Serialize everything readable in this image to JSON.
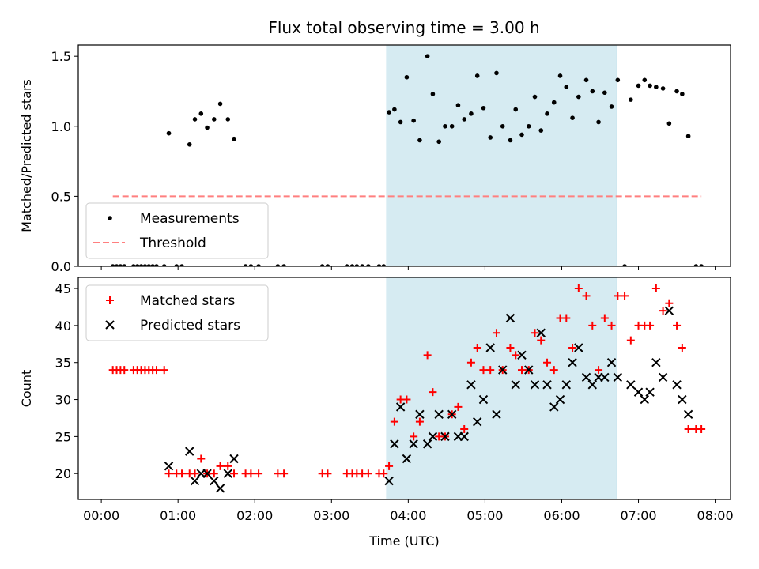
{
  "title": "Flux total observing time = 3.00 h",
  "colors": {
    "window_fill": "#add8e6",
    "measurements": "#000000",
    "threshold": "#ff7f7f",
    "matched": "#ff0000",
    "predicted": "#000000"
  },
  "chart_data": [
    {
      "type": "scatter",
      "panel": "top",
      "ylabel": "Matched/Predicted stars",
      "xlim": [
        -0.3,
        8.2
      ],
      "ylim": [
        0,
        1.58
      ],
      "yticks": [
        "0.0",
        "0.5",
        "1.0",
        "1.5"
      ],
      "highlight_window": [
        3.72,
        6.72
      ],
      "legend": {
        "placement": "lower-left",
        "entries": [
          "Measurements",
          "Threshold"
        ]
      },
      "threshold": {
        "name": "Threshold",
        "y": 0.5,
        "x": [
          0.15,
          7.82
        ],
        "style": "dashed"
      },
      "series": [
        {
          "name": "Measurements",
          "marker": "dot",
          "points": [
            [
              0.15,
              0
            ],
            [
              0.2,
              0
            ],
            [
              0.25,
              0
            ],
            [
              0.3,
              0
            ],
            [
              0.42,
              0
            ],
            [
              0.47,
              0
            ],
            [
              0.52,
              0
            ],
            [
              0.57,
              0
            ],
            [
              0.62,
              0
            ],
            [
              0.67,
              0
            ],
            [
              0.72,
              0
            ],
            [
              0.82,
              0
            ],
            [
              0.88,
              0.95
            ],
            [
              0.98,
              0
            ],
            [
              1.05,
              0
            ],
            [
              1.15,
              0.87
            ],
            [
              1.22,
              1.05
            ],
            [
              1.3,
              1.09
            ],
            [
              1.38,
              0.99
            ],
            [
              1.47,
              1.05
            ],
            [
              1.55,
              1.16
            ],
            [
              1.65,
              1.05
            ],
            [
              1.73,
              0.91
            ],
            [
              1.88,
              0
            ],
            [
              1.95,
              0
            ],
            [
              2.05,
              0
            ],
            [
              2.3,
              0
            ],
            [
              2.38,
              0
            ],
            [
              2.88,
              0
            ],
            [
              2.95,
              0
            ],
            [
              3.2,
              0
            ],
            [
              3.27,
              0
            ],
            [
              3.33,
              0
            ],
            [
              3.4,
              0
            ],
            [
              3.48,
              0
            ],
            [
              3.62,
              0
            ],
            [
              3.68,
              0
            ],
            [
              3.75,
              1.1
            ],
            [
              3.82,
              1.12
            ],
            [
              3.9,
              1.03
            ],
            [
              3.98,
              1.35
            ],
            [
              4.07,
              1.04
            ],
            [
              4.15,
              0.9
            ],
            [
              4.25,
              1.5
            ],
            [
              4.32,
              1.23
            ],
            [
              4.4,
              0.89
            ],
            [
              4.48,
              1.0
            ],
            [
              4.57,
              1.0
            ],
            [
              4.65,
              1.15
            ],
            [
              4.73,
              1.05
            ],
            [
              4.82,
              1.09
            ],
            [
              4.9,
              1.36
            ],
            [
              4.98,
              1.13
            ],
            [
              5.07,
              0.92
            ],
            [
              5.15,
              1.38
            ],
            [
              5.23,
              1.0
            ],
            [
              5.33,
              0.9
            ],
            [
              5.4,
              1.12
            ],
            [
              5.48,
              0.94
            ],
            [
              5.57,
              1.0
            ],
            [
              5.65,
              1.21
            ],
            [
              5.73,
              0.97
            ],
            [
              5.81,
              1.09
            ],
            [
              5.9,
              1.17
            ],
            [
              5.98,
              1.36
            ],
            [
              6.06,
              1.28
            ],
            [
              6.14,
              1.06
            ],
            [
              6.22,
              1.21
            ],
            [
              6.32,
              1.33
            ],
            [
              6.4,
              1.25
            ],
            [
              6.48,
              1.03
            ],
            [
              6.56,
              1.24
            ],
            [
              6.65,
              1.14
            ],
            [
              6.73,
              1.33
            ],
            [
              6.82,
              0
            ],
            [
              6.9,
              1.19
            ],
            [
              7.0,
              1.29
            ],
            [
              7.08,
              1.33
            ],
            [
              7.15,
              1.29
            ],
            [
              7.23,
              1.28
            ],
            [
              7.32,
              1.27
            ],
            [
              7.4,
              1.02
            ],
            [
              7.5,
              1.25
            ],
            [
              7.57,
              1.23
            ],
            [
              7.65,
              0.93
            ],
            [
              7.75,
              0
            ],
            [
              7.82,
              0
            ]
          ]
        }
      ]
    },
    {
      "type": "scatter",
      "panel": "bottom",
      "xlabel": "Time (UTC)",
      "ylabel": "Count",
      "xlim": [
        -0.3,
        8.2
      ],
      "ylim": [
        16.5,
        46.5
      ],
      "xticks": [
        "00:00",
        "01:00",
        "02:00",
        "03:00",
        "04:00",
        "05:00",
        "06:00",
        "07:00",
        "08:00"
      ],
      "yticks": [
        "20",
        "25",
        "30",
        "35",
        "40",
        "45"
      ],
      "highlight_window": [
        3.72,
        6.72
      ],
      "legend": {
        "placement": "top-left",
        "entries": [
          "Matched stars",
          "Predicted stars"
        ]
      },
      "series": [
        {
          "name": "Matched stars",
          "marker": "plus",
          "points": [
            [
              0.15,
              34
            ],
            [
              0.2,
              34
            ],
            [
              0.25,
              34
            ],
            [
              0.3,
              34
            ],
            [
              0.42,
              34
            ],
            [
              0.47,
              34
            ],
            [
              0.52,
              34
            ],
            [
              0.57,
              34
            ],
            [
              0.62,
              34
            ],
            [
              0.67,
              34
            ],
            [
              0.72,
              34
            ],
            [
              0.82,
              34
            ],
            [
              0.88,
              20
            ],
            [
              0.98,
              20
            ],
            [
              1.05,
              20
            ],
            [
              1.15,
              20
            ],
            [
              1.22,
              20
            ],
            [
              1.3,
              22
            ],
            [
              1.38,
              20
            ],
            [
              1.47,
              20
            ],
            [
              1.55,
              21
            ],
            [
              1.65,
              21
            ],
            [
              1.73,
              20
            ],
            [
              1.88,
              20
            ],
            [
              1.95,
              20
            ],
            [
              2.05,
              20
            ],
            [
              2.3,
              20
            ],
            [
              2.38,
              20
            ],
            [
              2.88,
              20
            ],
            [
              2.95,
              20
            ],
            [
              3.2,
              20
            ],
            [
              3.27,
              20
            ],
            [
              3.33,
              20
            ],
            [
              3.4,
              20
            ],
            [
              3.48,
              20
            ],
            [
              3.62,
              20
            ],
            [
              3.68,
              20
            ],
            [
              3.75,
              21
            ],
            [
              3.82,
              27
            ],
            [
              3.9,
              30
            ],
            [
              3.98,
              30
            ],
            [
              4.07,
              25
            ],
            [
              4.15,
              27
            ],
            [
              4.25,
              36
            ],
            [
              4.32,
              31
            ],
            [
              4.4,
              25
            ],
            [
              4.48,
              25
            ],
            [
              4.57,
              28
            ],
            [
              4.65,
              29
            ],
            [
              4.73,
              26
            ],
            [
              4.82,
              35
            ],
            [
              4.9,
              37
            ],
            [
              4.98,
              34
            ],
            [
              5.07,
              34
            ],
            [
              5.15,
              39
            ],
            [
              5.23,
              34
            ],
            [
              5.33,
              37
            ],
            [
              5.4,
              36
            ],
            [
              5.48,
              34
            ],
            [
              5.57,
              34
            ],
            [
              5.65,
              39
            ],
            [
              5.73,
              38
            ],
            [
              5.81,
              35
            ],
            [
              5.9,
              34
            ],
            [
              5.98,
              41
            ],
            [
              6.06,
              41
            ],
            [
              6.14,
              37
            ],
            [
              6.22,
              45
            ],
            [
              6.32,
              44
            ],
            [
              6.4,
              40
            ],
            [
              6.48,
              34
            ],
            [
              6.56,
              41
            ],
            [
              6.65,
              40
            ],
            [
              6.73,
              44
            ],
            [
              6.82,
              44
            ],
            [
              6.9,
              38
            ],
            [
              7.0,
              40
            ],
            [
              7.08,
              40
            ],
            [
              7.15,
              40
            ],
            [
              7.23,
              45
            ],
            [
              7.32,
              42
            ],
            [
              7.4,
              43
            ],
            [
              7.5,
              40
            ],
            [
              7.57,
              37
            ],
            [
              7.65,
              26
            ],
            [
              7.75,
              26
            ],
            [
              7.82,
              26
            ]
          ]
        },
        {
          "name": "Predicted stars",
          "marker": "cross",
          "points": [
            [
              0.88,
              21
            ],
            [
              1.15,
              23
            ],
            [
              1.22,
              19
            ],
            [
              1.3,
              20
            ],
            [
              1.38,
              20
            ],
            [
              1.47,
              19
            ],
            [
              1.55,
              18
            ],
            [
              1.65,
              20
            ],
            [
              1.73,
              22
            ],
            [
              3.75,
              19
            ],
            [
              3.82,
              24
            ],
            [
              3.9,
              29
            ],
            [
              3.98,
              22
            ],
            [
              4.07,
              24
            ],
            [
              4.15,
              28
            ],
            [
              4.25,
              24
            ],
            [
              4.32,
              25
            ],
            [
              4.4,
              28
            ],
            [
              4.48,
              25
            ],
            [
              4.57,
              28
            ],
            [
              4.65,
              25
            ],
            [
              4.73,
              25
            ],
            [
              4.82,
              32
            ],
            [
              4.9,
              27
            ],
            [
              4.98,
              30
            ],
            [
              5.07,
              37
            ],
            [
              5.15,
              28
            ],
            [
              5.23,
              34
            ],
            [
              5.33,
              41
            ],
            [
              5.4,
              32
            ],
            [
              5.48,
              36
            ],
            [
              5.57,
              34
            ],
            [
              5.65,
              32
            ],
            [
              5.73,
              39
            ],
            [
              5.81,
              32
            ],
            [
              5.9,
              29
            ],
            [
              5.98,
              30
            ],
            [
              6.06,
              32
            ],
            [
              6.14,
              35
            ],
            [
              6.22,
              37
            ],
            [
              6.32,
              33
            ],
            [
              6.4,
              32
            ],
            [
              6.48,
              33
            ],
            [
              6.56,
              33
            ],
            [
              6.65,
              35
            ],
            [
              6.73,
              33
            ],
            [
              6.9,
              32
            ],
            [
              7.0,
              31
            ],
            [
              7.08,
              30
            ],
            [
              7.15,
              31
            ],
            [
              7.23,
              35
            ],
            [
              7.32,
              33
            ],
            [
              7.4,
              42
            ],
            [
              7.5,
              32
            ],
            [
              7.57,
              30
            ],
            [
              7.65,
              28
            ]
          ]
        }
      ]
    }
  ]
}
